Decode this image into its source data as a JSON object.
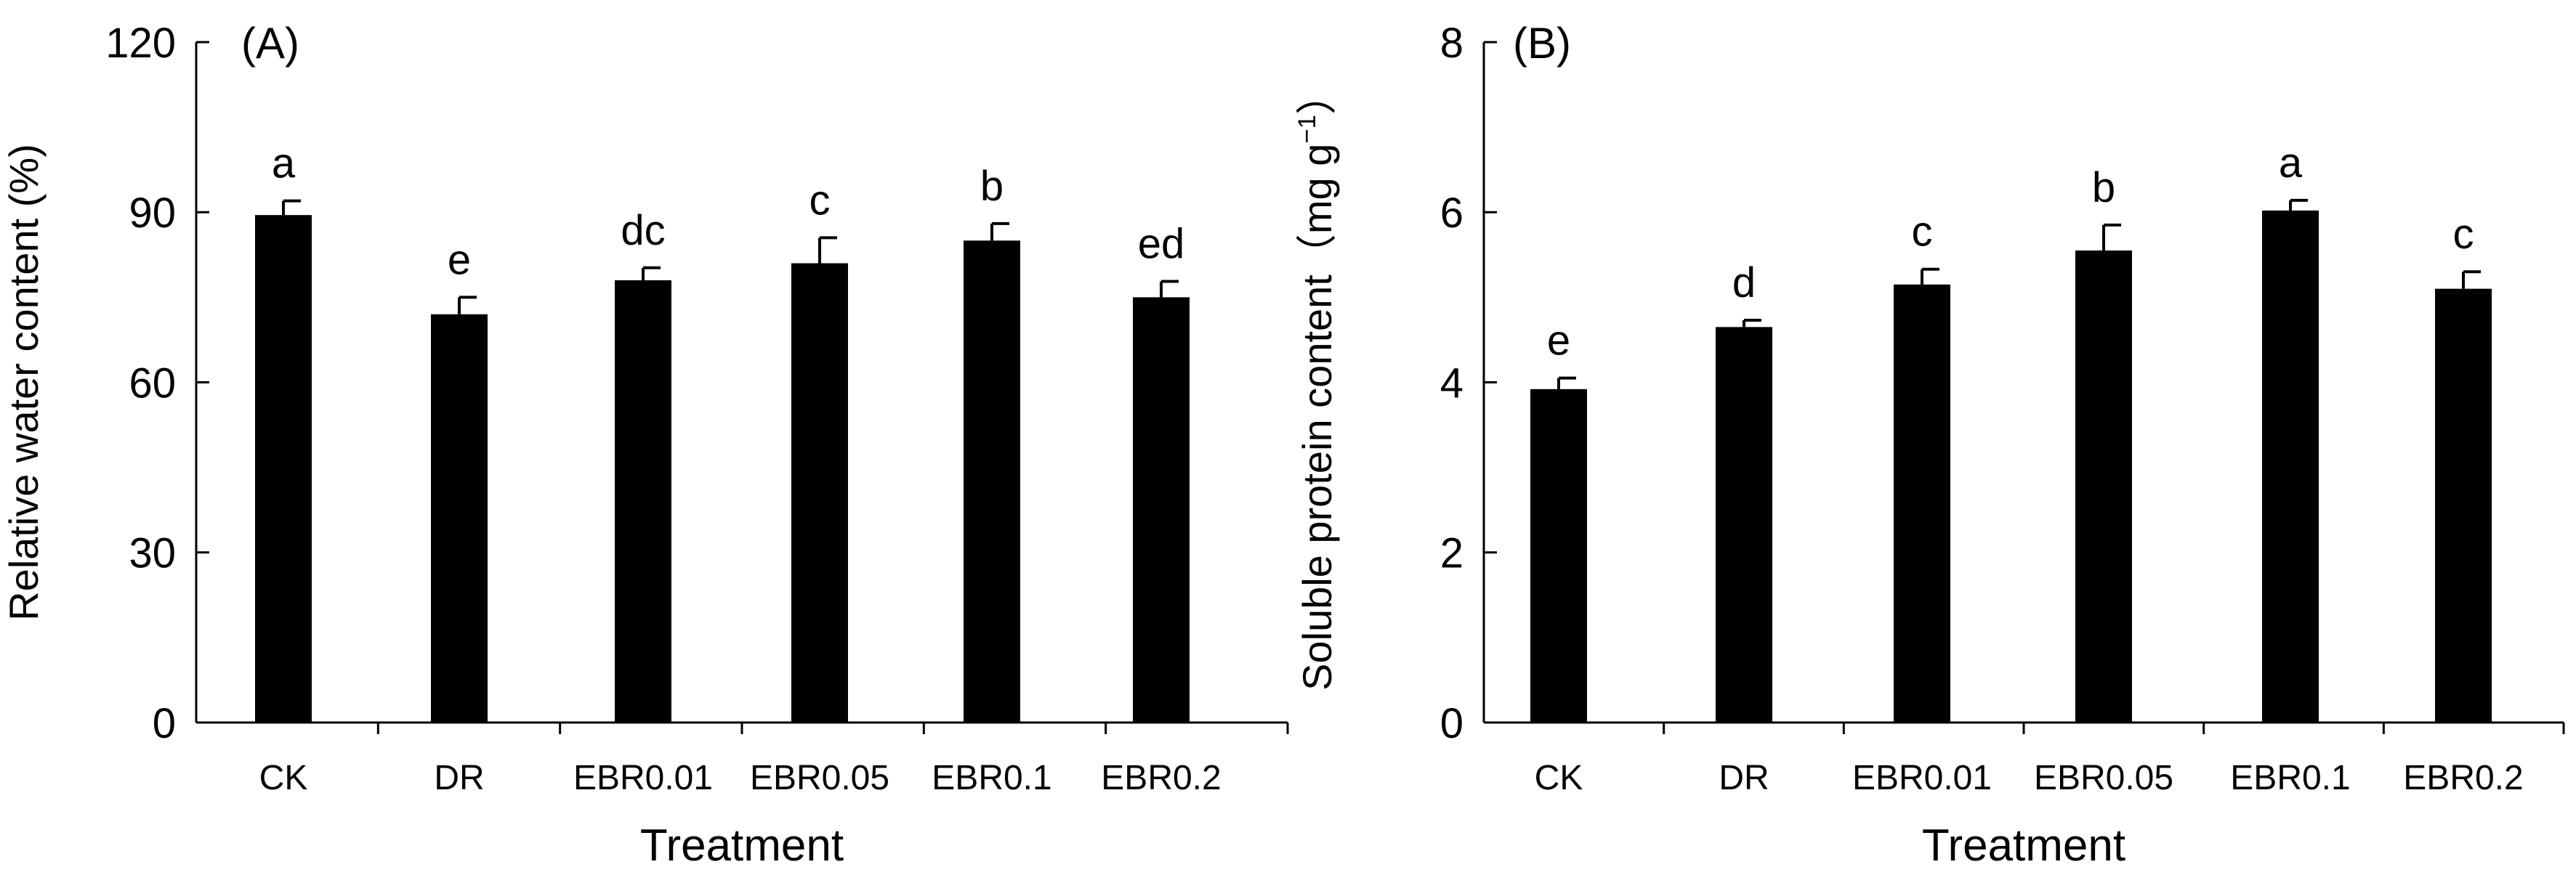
{
  "chart_data": [
    {
      "type": "bar",
      "panel_label": "(A)",
      "categories": [
        "CK",
        "DR",
        "EBR0.01",
        "EBR0.05",
        "EBR0.1",
        "EBR0.2"
      ],
      "values": [
        89.5,
        72.0,
        78.0,
        81.0,
        85.0,
        75.0
      ],
      "errors": [
        2.5,
        3.0,
        2.2,
        4.5,
        3.0,
        2.8
      ],
      "significance": [
        "a",
        "e",
        "dc",
        "c",
        "b",
        "ed"
      ],
      "xlabel": "Treatment",
      "ylabel": "Relative water content (%)",
      "ylim": [
        0,
        120
      ],
      "yticks": [
        "0",
        "30",
        "60",
        "90",
        "120"
      ],
      "grid": false,
      "bar_color": "#000000"
    },
    {
      "type": "bar",
      "panel_label": "(B)",
      "categories": [
        "CK",
        "DR",
        "EBR0.01",
        "EBR0.05",
        "EBR0.1",
        "EBR0.2"
      ],
      "values": [
        3.92,
        4.65,
        5.15,
        5.55,
        6.02,
        5.1
      ],
      "errors": [
        0.13,
        0.08,
        0.18,
        0.3,
        0.12,
        0.2
      ],
      "significance": [
        "e",
        "d",
        "c",
        "b",
        "a",
        "c"
      ],
      "xlabel": "Treatment",
      "ylabel": "Soluble protein content（mg g",
      "ylabel_superscript": "−1",
      "ylabel_close": "）",
      "ylim": [
        0,
        8
      ],
      "yticks": [
        "0",
        "2",
        "4",
        "6",
        "8"
      ],
      "grid": false,
      "bar_color": "#000000"
    }
  ]
}
